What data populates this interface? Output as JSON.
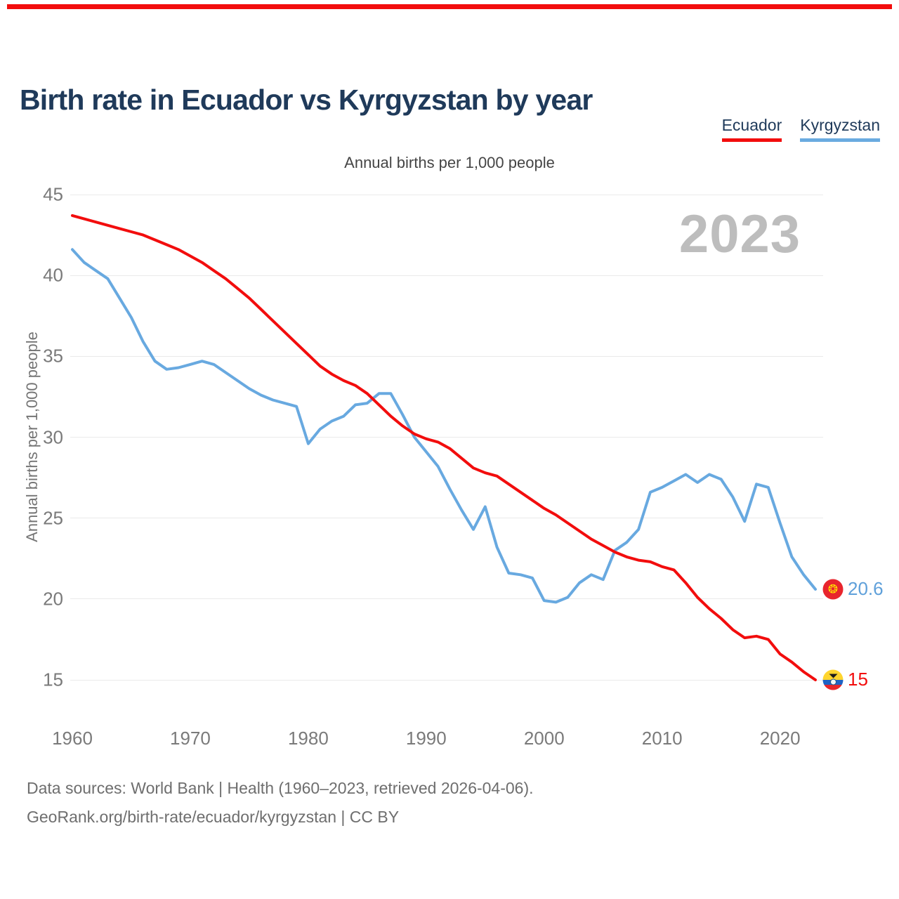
{
  "accent_color": "#f20d0d",
  "header": {
    "title": "Birth rate in Ecuador vs Kyrgyzstan by year"
  },
  "legend": [
    {
      "label": "Ecuador",
      "color": "#f20d0d"
    },
    {
      "label": "Kyrgyzstan",
      "color": "#6aabe0"
    }
  ],
  "watermark": "2023",
  "chart_data": {
    "type": "line",
    "title": "Annual births per 1,000 people",
    "ylabel": "Annual births per 1,000 people",
    "xlabel": "",
    "grid": "horizontal",
    "legend_position": "top-right",
    "ylim": [
      15,
      45
    ],
    "xlim": [
      1960,
      2023
    ],
    "yticks": [
      45,
      40,
      35,
      30,
      25,
      20,
      15
    ],
    "xticks": [
      1960,
      1970,
      1980,
      1990,
      2000,
      2010,
      2020
    ],
    "x": [
      1960,
      1961,
      1962,
      1963,
      1964,
      1965,
      1966,
      1967,
      1968,
      1969,
      1970,
      1971,
      1972,
      1973,
      1974,
      1975,
      1976,
      1977,
      1978,
      1979,
      1980,
      1981,
      1982,
      1983,
      1984,
      1985,
      1986,
      1987,
      1988,
      1989,
      1990,
      1991,
      1992,
      1993,
      1994,
      1995,
      1996,
      1997,
      1998,
      1999,
      2000,
      2001,
      2002,
      2003,
      2004,
      2005,
      2006,
      2007,
      2008,
      2009,
      2010,
      2011,
      2012,
      2013,
      2014,
      2015,
      2016,
      2017,
      2018,
      2019,
      2020,
      2021,
      2022,
      2023
    ],
    "series": [
      {
        "name": "Kyrgyzstan",
        "color": "#68a9e0",
        "end_label": "20.6",
        "flag": "kyrgyzstan",
        "values": [
          41.6,
          40.8,
          40.3,
          39.8,
          38.6,
          37.4,
          35.9,
          34.7,
          34.2,
          34.3,
          34.5,
          34.7,
          34.5,
          34.0,
          33.5,
          33.0,
          32.6,
          32.3,
          32.1,
          31.9,
          29.6,
          30.5,
          31.0,
          31.3,
          32.0,
          32.1,
          32.7,
          32.7,
          31.4,
          30.0,
          29.1,
          28.2,
          26.8,
          25.5,
          24.3,
          25.7,
          23.2,
          21.6,
          21.5,
          21.3,
          19.9,
          19.8,
          20.1,
          21.0,
          21.5,
          21.2,
          23.0,
          23.5,
          24.3,
          26.6,
          26.9,
          27.3,
          27.7,
          27.2,
          27.7,
          27.4,
          26.3,
          24.8,
          27.1,
          26.9,
          24.7,
          22.6,
          21.5,
          20.6
        ]
      },
      {
        "name": "Ecuador",
        "color": "#f20d0d",
        "end_label": "15",
        "flag": "ecuador",
        "values": [
          43.7,
          43.5,
          43.3,
          43.1,
          42.9,
          42.7,
          42.5,
          42.2,
          41.9,
          41.6,
          41.2,
          40.8,
          40.3,
          39.8,
          39.2,
          38.6,
          37.9,
          37.2,
          36.5,
          35.8,
          35.1,
          34.4,
          33.9,
          33.5,
          33.2,
          32.7,
          32.0,
          31.3,
          30.7,
          30.2,
          29.9,
          29.7,
          29.3,
          28.7,
          28.1,
          27.8,
          27.6,
          27.1,
          26.6,
          26.1,
          25.6,
          25.2,
          24.7,
          24.2,
          23.7,
          23.3,
          22.9,
          22.6,
          22.4,
          22.3,
          22.0,
          21.8,
          21.0,
          20.1,
          19.4,
          18.8,
          18.1,
          17.6,
          17.7,
          17.5,
          16.6,
          16.1,
          15.5,
          15.0
        ]
      }
    ]
  },
  "sun_glyph": "❂",
  "footer": {
    "line1": "Data sources: World Bank | Health (1960–2023, retrieved 2026-04-06).",
    "line2": "GeoRank.org/birth-rate/ecuador/kyrgyzstan | CC BY"
  }
}
